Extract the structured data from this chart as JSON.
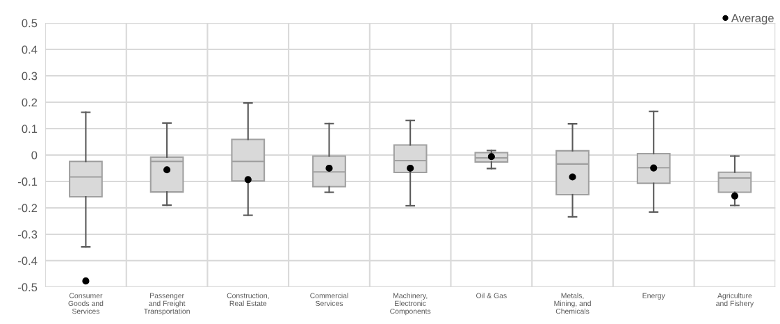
{
  "chart_data": {
    "type": "box",
    "categories": [
      "Consumer Goods and Services",
      "Passenger and Freight Transportation",
      "Construction, Real Estate",
      "Commercial Services",
      "Machinery, Electronic Components",
      "Oil & Gas",
      "Metals, Mining, and Chemicals",
      "Energy",
      "Agriculture and Fishery"
    ],
    "series": [
      {
        "color": "#d9d9d9",
        "boxes": [
          {
            "low": -0.348,
            "q1": -0.158,
            "median": -0.083,
            "q3": -0.024,
            "high": 0.162
          },
          {
            "low": -0.19,
            "q1": -0.14,
            "median": -0.024,
            "q3": -0.008,
            "high": 0.121
          },
          {
            "low": -0.228,
            "q1": -0.098,
            "median": -0.024,
            "q3": 0.059,
            "high": 0.197
          },
          {
            "low": -0.141,
            "q1": -0.12,
            "median": -0.064,
            "q3": -0.004,
            "high": 0.119
          },
          {
            "low": -0.192,
            "q1": -0.066,
            "median": -0.021,
            "q3": 0.038,
            "high": 0.131
          },
          {
            "low": -0.051,
            "q1": -0.026,
            "median": -0.011,
            "q3": 0.009,
            "high": 0.017
          },
          {
            "low": -0.234,
            "q1": -0.15,
            "median": -0.034,
            "q3": 0.016,
            "high": 0.118
          },
          {
            "low": -0.216,
            "q1": -0.107,
            "median": -0.048,
            "q3": 0.005,
            "high": 0.165
          },
          {
            "low": -0.191,
            "q1": -0.141,
            "median": -0.087,
            "q3": -0.065,
            "high": -0.004
          }
        ]
      },
      {
        "type": "scatter",
        "name": "Average",
        "color": "#000000",
        "marker": "circle",
        "x": [
          "Consumer Goods and Services",
          "Passenger and Freight Transportation",
          "Construction, Real Estate",
          "Commercial Services",
          "Machinery, Electronic Components",
          "Oil & Gas",
          "Metals, Mining, and Chemicals",
          "Energy",
          "Agriculture and Fishery"
        ],
        "values": [
          -0.477,
          -0.056,
          -0.093,
          -0.05,
          -0.05,
          -0.006,
          -0.083,
          -0.049,
          -0.155
        ]
      }
    ],
    "ylim": [
      -0.5,
      0.5
    ],
    "yticks": [
      -0.5,
      -0.4,
      -0.3,
      -0.2,
      -0.1,
      0,
      0.1,
      0.2,
      0.3,
      0.4,
      0.5
    ],
    "grid": true,
    "legend": "top right"
  }
}
